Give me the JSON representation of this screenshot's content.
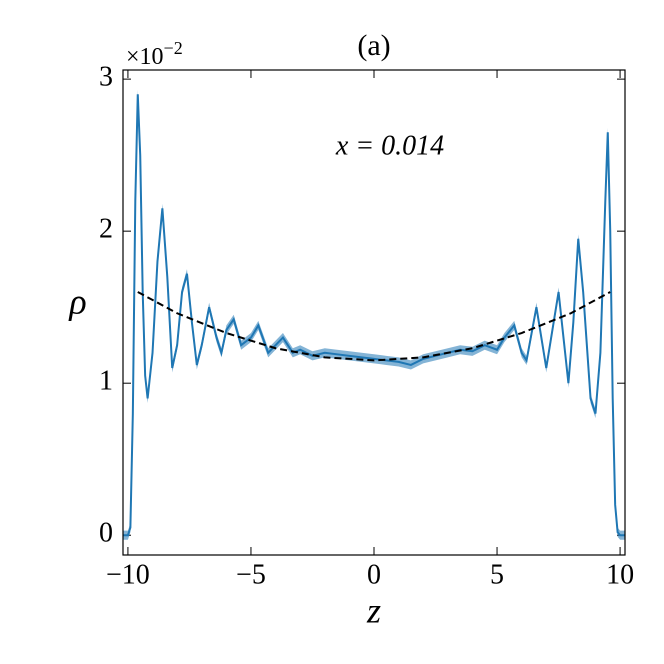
{
  "chart_data": {
    "type": "line",
    "title": "(a)",
    "xlabel": "z",
    "ylabel": "ρ",
    "annotation": "x = 0.014",
    "y_offset_base": "×10",
    "y_offset_exponent": "−2",
    "xlim": [
      -10.2,
      10.2
    ],
    "ylim": [
      -0.13,
      3.06
    ],
    "xticks": [
      {
        "value": -10,
        "label": "−10"
      },
      {
        "value": -5,
        "label": "−5"
      },
      0,
      5,
      10
    ],
    "yticks": [
      0,
      1,
      2,
      3
    ],
    "series": [
      {
        "color": "#1f77b4",
        "error": 0.03,
        "x": [
          -10.2,
          -10.0,
          -9.9,
          -9.8,
          -9.7,
          -9.6,
          -9.5,
          -9.4,
          -9.3,
          -9.2,
          -9.0,
          -8.8,
          -8.6,
          -8.4,
          -8.2,
          -8.0,
          -7.8,
          -7.6,
          -7.4,
          -7.2,
          -7.0,
          -6.7,
          -6.4,
          -6.2,
          -6.0,
          -5.7,
          -5.4,
          -5.0,
          -4.7,
          -4.3,
          -4.0,
          -3.7,
          -3.3,
          -3.0,
          -2.5,
          -2.0,
          -1.5,
          -1.0,
          -0.5,
          0,
          0.5,
          1.0,
          1.5,
          2.0,
          2.5,
          3.0,
          3.5,
          4.0,
          4.5,
          5.0,
          5.3,
          5.7,
          6.0,
          6.2,
          6.6,
          6.8,
          7.0,
          7.2,
          7.5,
          7.7,
          7.9,
          8.1,
          8.3,
          8.5,
          8.8,
          9.0,
          9.2,
          9.4,
          9.5,
          9.6,
          9.7,
          9.8,
          9.9,
          10.0,
          10.2
        ],
        "values": [
          0,
          0,
          0.05,
          0.8,
          2.2,
          2.9,
          2.5,
          1.6,
          1.05,
          0.9,
          1.2,
          1.8,
          2.15,
          1.7,
          1.1,
          1.25,
          1.6,
          1.72,
          1.4,
          1.12,
          1.25,
          1.5,
          1.3,
          1.2,
          1.35,
          1.42,
          1.25,
          1.3,
          1.38,
          1.2,
          1.25,
          1.3,
          1.2,
          1.22,
          1.18,
          1.2,
          1.19,
          1.18,
          1.17,
          1.16,
          1.15,
          1.14,
          1.12,
          1.16,
          1.18,
          1.2,
          1.22,
          1.21,
          1.25,
          1.22,
          1.3,
          1.38,
          1.2,
          1.15,
          1.5,
          1.3,
          1.1,
          1.3,
          1.6,
          1.3,
          1.0,
          1.4,
          1.95,
          1.6,
          0.9,
          0.8,
          1.2,
          2.2,
          2.65,
          2.0,
          0.9,
          0.2,
          0.02,
          0,
          0
        ]
      },
      {
        "color": "#000000",
        "dashed": true,
        "x": [
          -9.6,
          -8,
          -6,
          -4,
          -2,
          0,
          2,
          4,
          6,
          8,
          9.6
        ],
        "values": [
          1.6,
          1.46,
          1.33,
          1.23,
          1.17,
          1.15,
          1.17,
          1.23,
          1.33,
          1.46,
          1.6
        ]
      }
    ]
  }
}
